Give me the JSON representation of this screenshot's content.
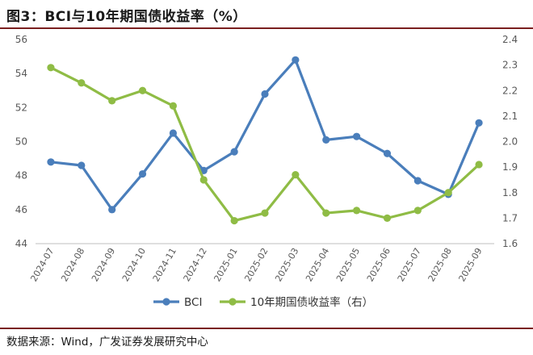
{
  "header": {
    "title": "图3：BCI与10年期国债收益率（%）"
  },
  "footer": {
    "source": "数据来源：Wind，广发证券发展研究中心"
  },
  "chart_data": {
    "type": "line",
    "categories": [
      "2024-07",
      "2024-08",
      "2024-09",
      "2024-10",
      "2024-11",
      "2024-12",
      "2025-01",
      "2025-02",
      "2025-03",
      "2025-04",
      "2025-05",
      "2025-06",
      "2025-07",
      "2025-08",
      "2025-09"
    ],
    "series": [
      {
        "name": "BCI",
        "axis": "left",
        "color": "#4a7ebb",
        "values": [
          48.8,
          48.6,
          46.0,
          48.1,
          50.5,
          48.3,
          49.4,
          52.8,
          54.8,
          50.1,
          50.3,
          49.3,
          47.7,
          46.9,
          51.1
        ]
      },
      {
        "name": "10年期国债收益率（右）",
        "axis": "right",
        "color": "#8fbc45",
        "values": [
          2.29,
          2.23,
          2.16,
          2.2,
          2.14,
          1.85,
          1.69,
          1.72,
          1.87,
          1.72,
          1.73,
          1.7,
          1.73,
          1.8,
          1.91
        ]
      }
    ],
    "y_left": {
      "min": 44,
      "max": 56,
      "ticks": [
        "44",
        "46",
        "48",
        "50",
        "52",
        "54",
        "56"
      ]
    },
    "y_right": {
      "min": 1.6,
      "max": 2.4,
      "ticks": [
        "1.6",
        "1.7",
        "1.8",
        "1.9",
        "2.0",
        "2.1",
        "2.2",
        "2.3",
        "2.4"
      ]
    },
    "grid": false,
    "legend": "bottom"
  }
}
